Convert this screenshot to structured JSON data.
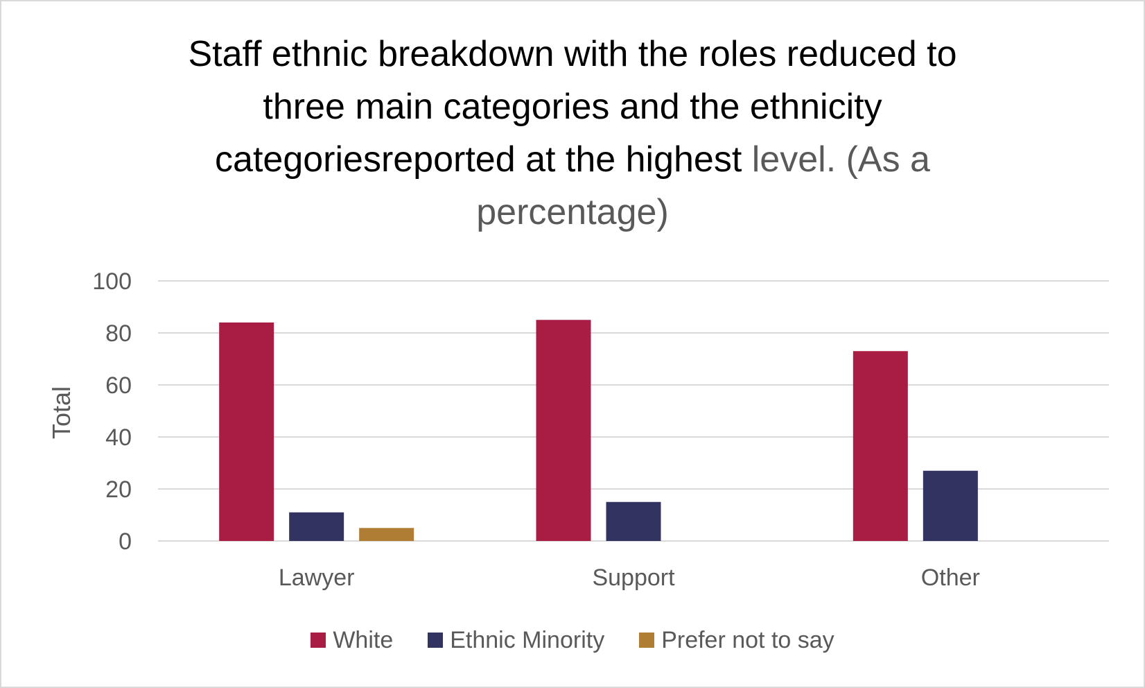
{
  "title": {
    "line1": "Staff ethnic breakdown with the roles reduced to",
    "line2": "three main categories and the ethnicity",
    "line3_dark": "categoriesreported at the highest ",
    "line3_muted": "level. (As a",
    "line4_muted": "percentage)"
  },
  "chart_data": {
    "type": "bar",
    "title": "Staff ethnic breakdown with the roles reduced to three main categories and the ethnicity categoriesreported at the highest level. (As a percentage)",
    "categories": [
      "Lawyer",
      "Support",
      "Other"
    ],
    "series": [
      {
        "name": "White",
        "color": "#a91d44",
        "values": [
          84,
          85,
          73
        ]
      },
      {
        "name": "Ethnic Minority",
        "color": "#333361",
        "values": [
          11,
          15,
          27
        ]
      },
      {
        "name": "Prefer not to say",
        "color": "#b07d35",
        "values": [
          5,
          0,
          0
        ]
      }
    ],
    "ylabel": "Total",
    "xlabel": "",
    "ylim": [
      0,
      100
    ],
    "yticks": [
      0,
      20,
      40,
      60,
      80,
      100
    ],
    "grid": true,
    "legend": "bottom"
  }
}
